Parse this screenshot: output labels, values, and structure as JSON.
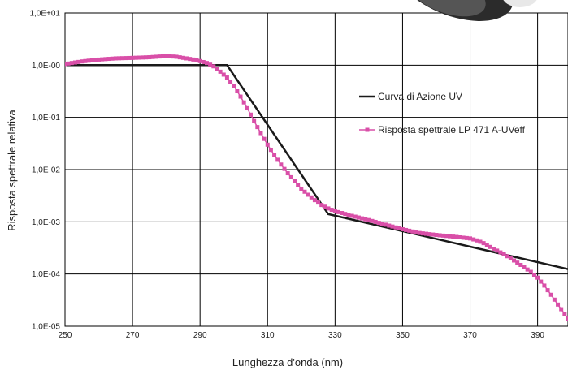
{
  "chart_data": {
    "type": "line",
    "title": "",
    "xlabel": "Lunghezza d'onda (nm)",
    "ylabel": "Risposta spettrale relativa",
    "xlim": [
      250,
      399
    ],
    "ylim": [
      1e-05,
      10
    ],
    "yscale": "log",
    "grid": true,
    "legend_position": "right-center",
    "x_ticks": [
      250,
      270,
      290,
      310,
      330,
      350,
      370,
      390
    ],
    "x_tick_labels": [
      "250",
      "270",
      "290",
      "310",
      "330",
      "350",
      "370",
      "390"
    ],
    "y_ticks": [
      10,
      1,
      0.1,
      0.01,
      0.001,
      0.0001,
      1e-05
    ],
    "y_tick_labels": [
      "1,0E+01",
      "1,0E-00",
      "1,0E-01",
      "1,0E-02",
      "1,0E-03",
      "1,0E-04",
      "1,0E-05"
    ],
    "series": [
      {
        "name": "Curva di Azione UV",
        "color": "#1a1a1a",
        "marker": "none",
        "x": [
          250,
          298,
          328,
          400
        ],
        "y": [
          1.0,
          1.0,
          0.0014,
          0.00012
        ]
      },
      {
        "name": "Risposta spettrale LP 471 A-UVeff",
        "color": "#d94fa8",
        "marker": "square",
        "x": [
          250,
          255,
          260,
          265,
          270,
          275,
          280,
          283,
          286,
          289,
          292,
          294,
          296,
          298,
          300,
          302,
          304,
          306,
          308,
          310,
          312,
          314,
          316,
          318,
          320,
          322,
          324,
          326,
          328,
          330,
          335,
          340,
          345,
          350,
          355,
          360,
          365,
          370,
          372,
          374,
          376,
          378,
          380,
          382,
          384,
          386,
          388,
          390,
          392,
          394,
          396,
          399
        ],
        "y": [
          1.05,
          1.18,
          1.28,
          1.35,
          1.38,
          1.42,
          1.5,
          1.45,
          1.35,
          1.25,
          1.1,
          0.95,
          0.75,
          0.58,
          0.4,
          0.25,
          0.15,
          0.085,
          0.05,
          0.03,
          0.019,
          0.0125,
          0.0085,
          0.006,
          0.0043,
          0.0033,
          0.0026,
          0.0021,
          0.0018,
          0.0016,
          0.0013,
          0.00108,
          0.00088,
          0.00072,
          0.00061,
          0.00056,
          0.00052,
          0.00048,
          0.00044,
          0.00039,
          0.00033,
          0.00028,
          0.00024,
          0.0002,
          0.000165,
          0.000135,
          0.00011,
          8.5e-05,
          6e-05,
          4e-05,
          2.6e-05,
          1.4e-05
        ]
      }
    ]
  }
}
